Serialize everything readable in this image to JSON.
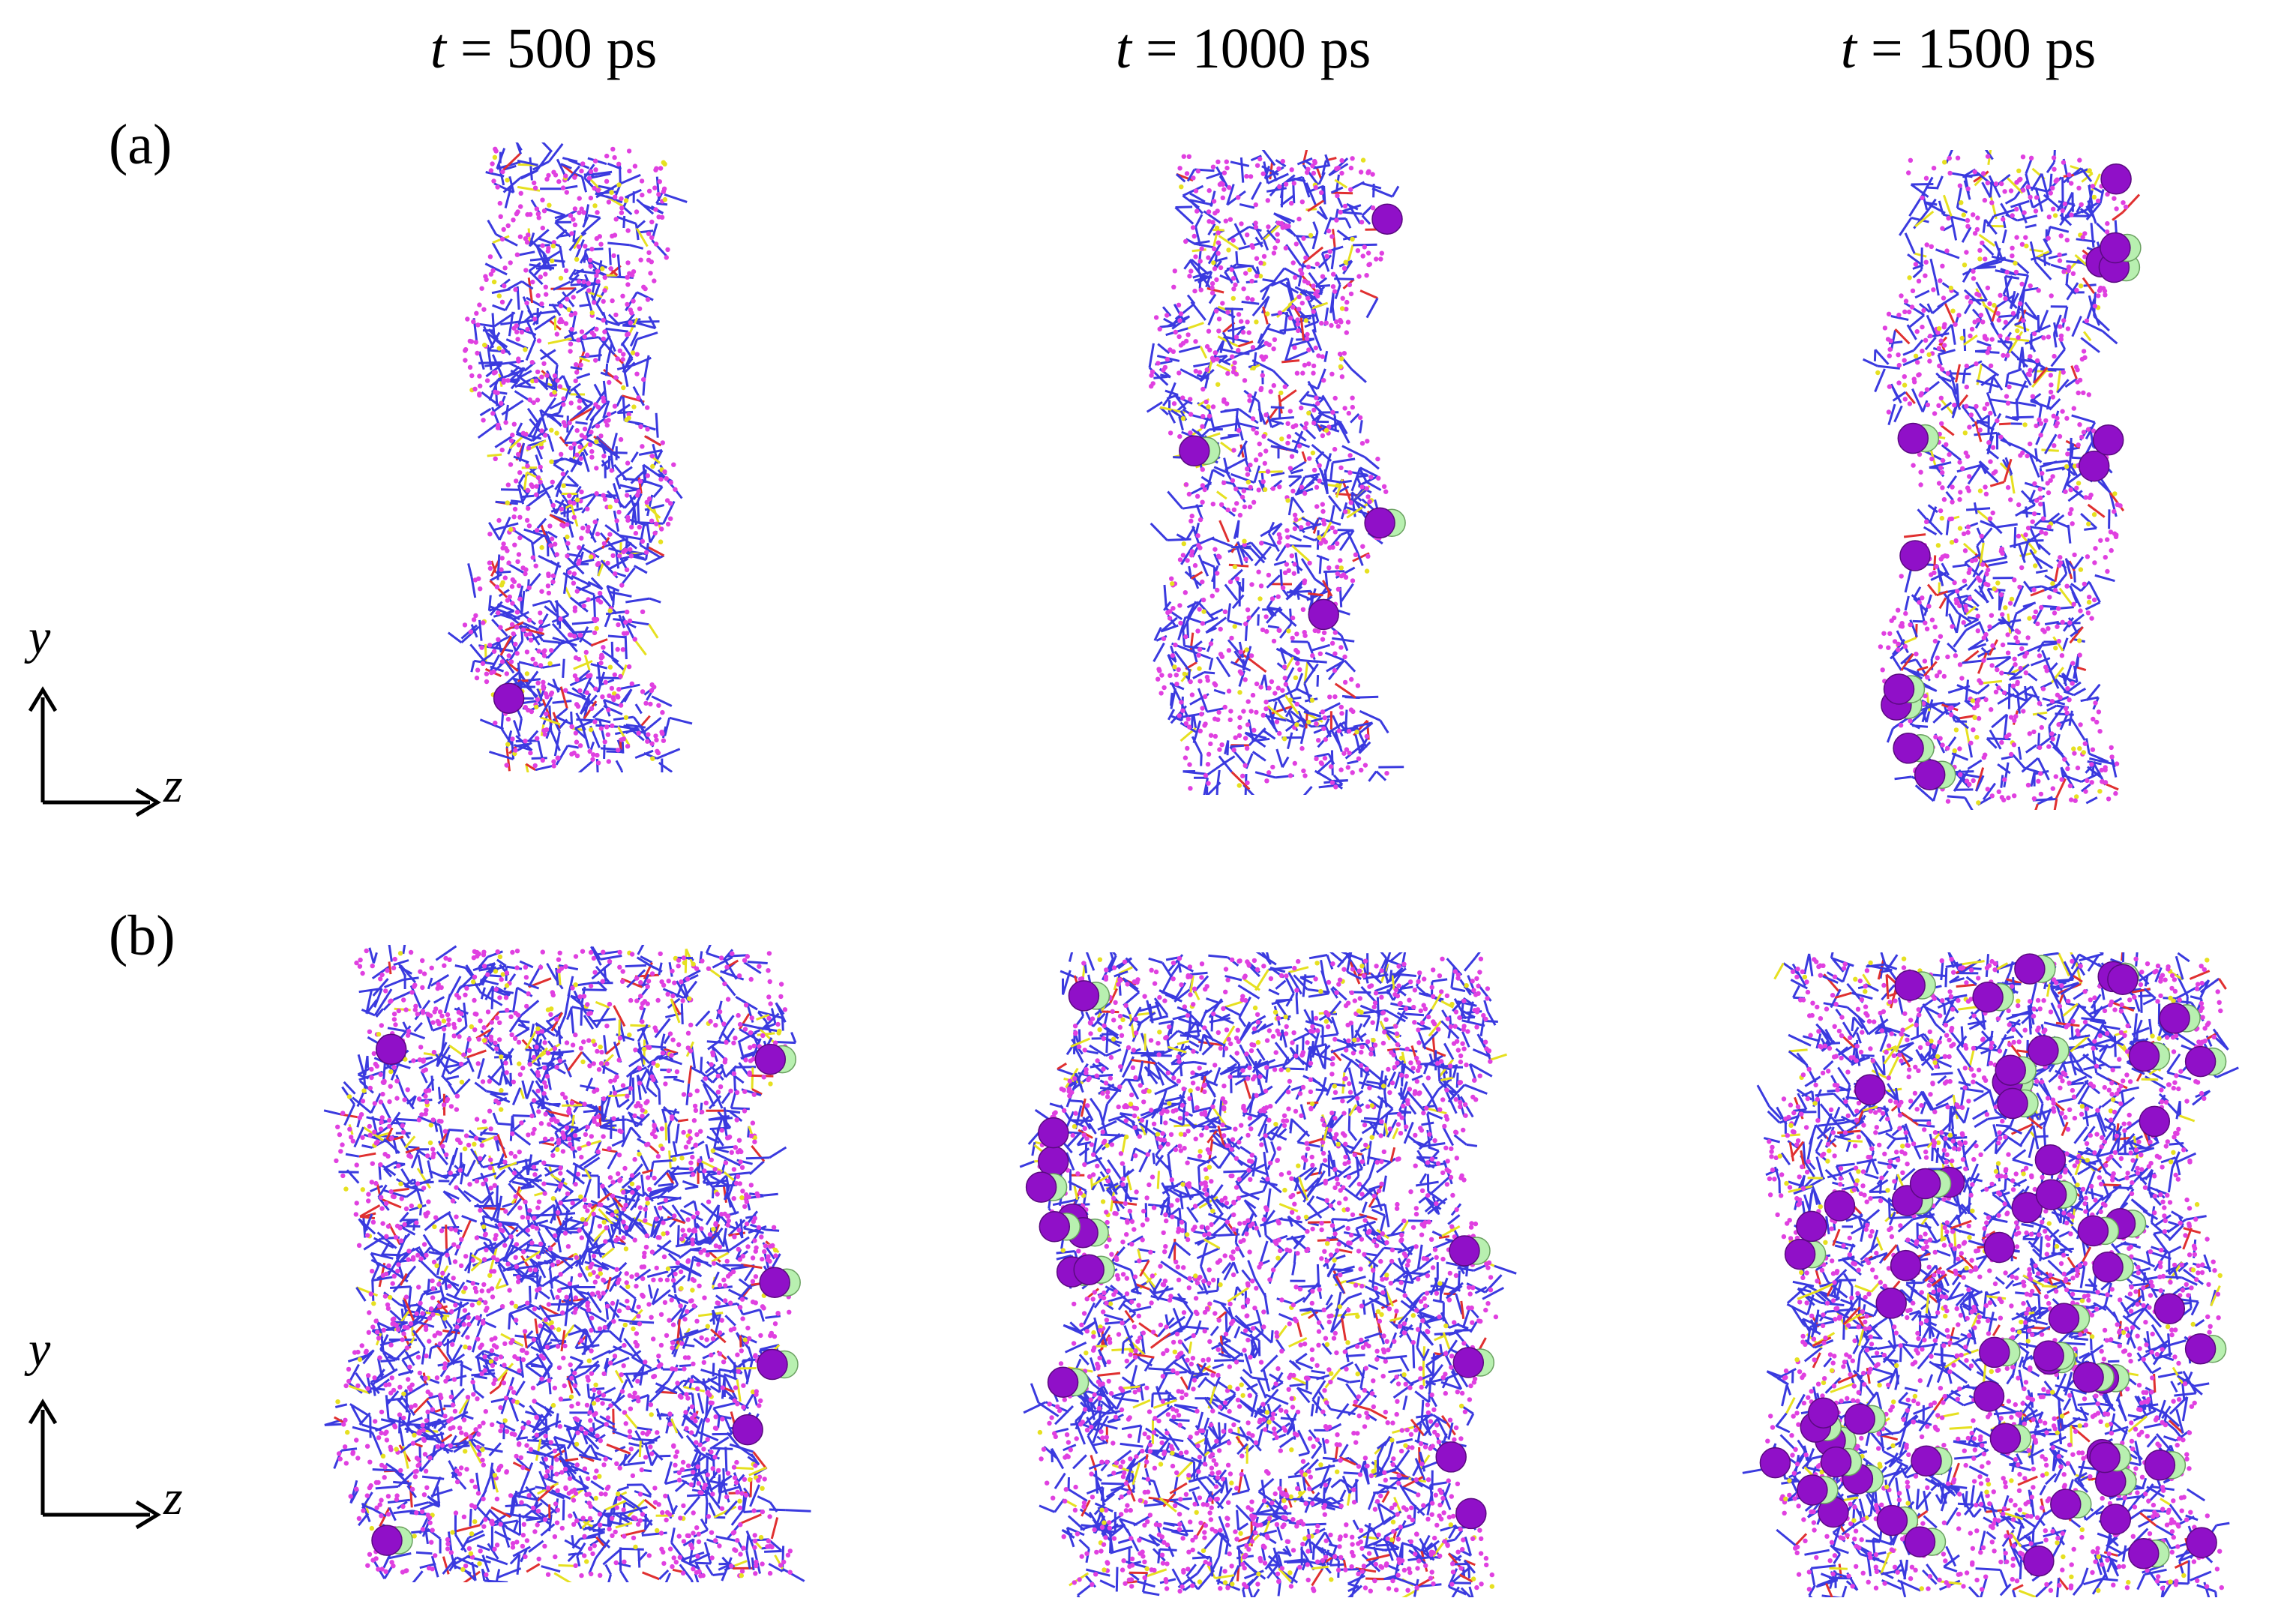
{
  "columns": [
    {
      "prefix": "t",
      "rest": " = 500 ps"
    },
    {
      "prefix": "t",
      "rest": " = 1000 ps"
    },
    {
      "prefix": "t",
      "rest": " = 1500 ps"
    }
  ],
  "rows": [
    {
      "label": "(a)"
    },
    {
      "label": "(b)"
    }
  ],
  "axes": {
    "vertical": "y",
    "horizontal": "z"
  },
  "colors": {
    "bond": "#3a3adf",
    "atom": "#e040e0",
    "oxygen": "#e03030",
    "sulfur": "#e6e020",
    "ion": "#9010c8",
    "ion_light": "#b8f0b0"
  },
  "ions": {
    "a": [
      1,
      4,
      12
    ],
    "b": [
      6,
      14,
      60
    ]
  }
}
